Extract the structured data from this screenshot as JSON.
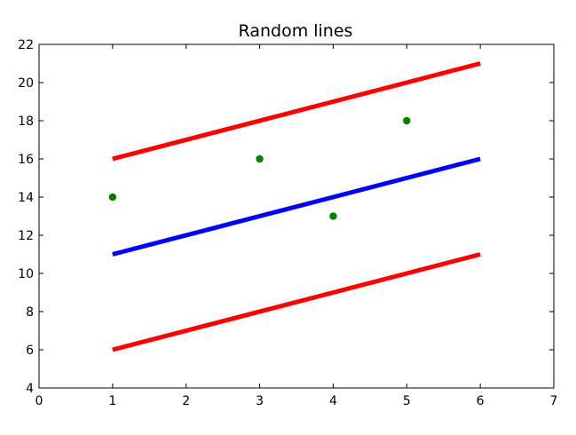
{
  "chart_data": {
    "type": "line",
    "title": "Random lines",
    "xlabel": "",
    "ylabel": "",
    "xlim": [
      0,
      7
    ],
    "ylim": [
      4,
      22
    ],
    "xticks": [
      0,
      1,
      2,
      3,
      4,
      5,
      6,
      7
    ],
    "yticks": [
      4,
      6,
      8,
      10,
      12,
      14,
      16,
      18,
      20,
      22
    ],
    "grid": false,
    "legend": "none",
    "series": [
      {
        "kind": "line",
        "color": "#ff0000",
        "x": [
          1,
          6
        ],
        "y": [
          16,
          21
        ]
      },
      {
        "kind": "line",
        "color": "#0000ff",
        "x": [
          1,
          6
        ],
        "y": [
          11,
          16
        ]
      },
      {
        "kind": "line",
        "color": "#ff0000",
        "x": [
          1,
          6
        ],
        "y": [
          6,
          11
        ]
      },
      {
        "kind": "scatter",
        "color": "#008000",
        "x": [
          1,
          3,
          4,
          5
        ],
        "y": [
          14,
          16,
          13,
          18
        ]
      }
    ]
  }
}
